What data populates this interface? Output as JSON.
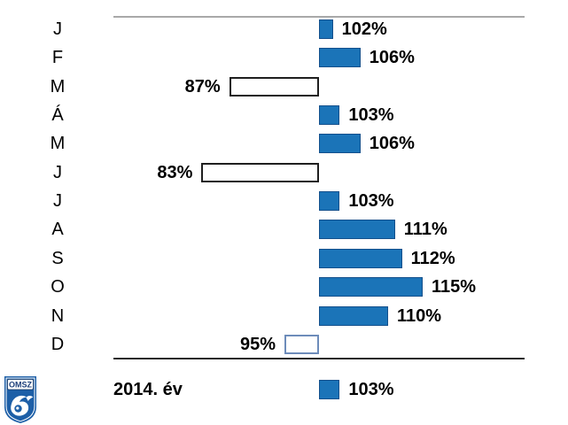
{
  "colors": {
    "bar_fill": "#1b74b8",
    "bar_edge": "#14508c",
    "neg_outline_dark": "#1f1f1f",
    "neg_outline_light": "#6d8cba",
    "top_line": "#a9a9a9",
    "bottom_line": "#2a2a2a",
    "text": "#000000",
    "logo_blue": "#1d5fa7",
    "logo_text_blue": "#1d3f7a"
  },
  "chart_data": {
    "type": "bar",
    "orientation": "horizontal",
    "baseline_value": 100,
    "unit": "%",
    "categories": [
      "J",
      "F",
      "M",
      "Á",
      "M",
      "J",
      "J",
      "A",
      "S",
      "O",
      "N",
      "D"
    ],
    "values": [
      102,
      106,
      87,
      103,
      106,
      83,
      103,
      111,
      112,
      115,
      110,
      95
    ],
    "value_labels": [
      "102%",
      "106%",
      "87%",
      "103%",
      "106%",
      "83%",
      "103%",
      "111%",
      "112%",
      "115%",
      "110%",
      "95%"
    ],
    "bar_styles": [
      "pos",
      "pos",
      "neg-dark",
      "pos",
      "pos",
      "neg-dark",
      "pos",
      "pos",
      "pos",
      "pos",
      "pos",
      "neg-light"
    ],
    "summary": {
      "label": "2014. év",
      "value": 103,
      "value_label": "103%",
      "style": "pos"
    },
    "title": "",
    "xlabel": "",
    "ylabel": "",
    "xlim": [
      80,
      118
    ],
    "grid": false,
    "legend": false
  },
  "logo": {
    "text": "OMSZ"
  }
}
